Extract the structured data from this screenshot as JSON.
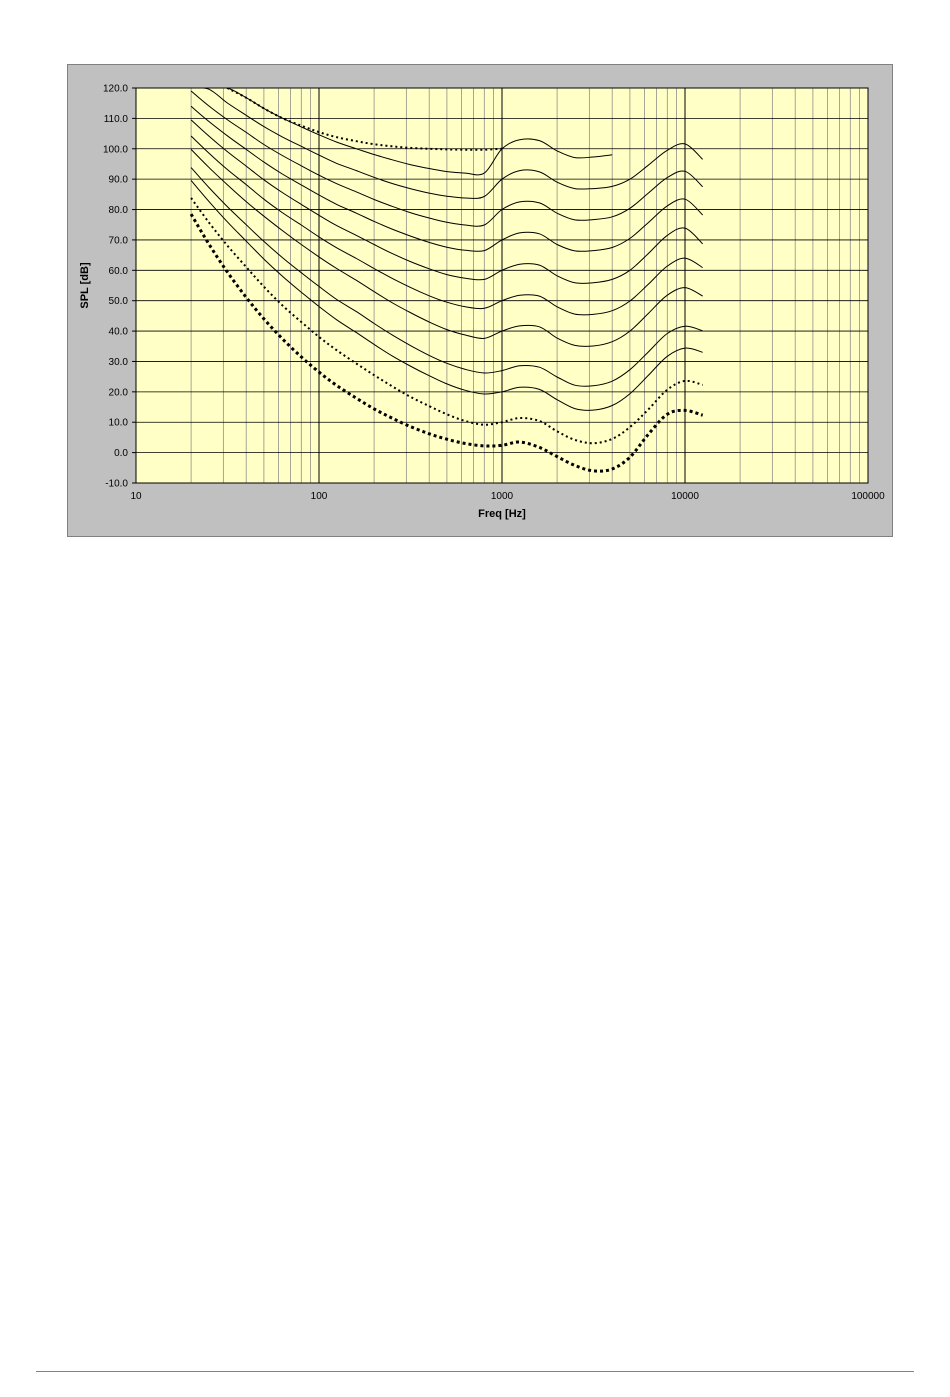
{
  "colors": {
    "panel": "#c0c0c0",
    "plot_area": "#ffffc6",
    "grid": "#808080",
    "major_grid": "#000000",
    "curves": "#000000"
  },
  "chart_data": {
    "type": "line",
    "title": "",
    "xlabel": "Freq [Hz]",
    "ylabel": "SPL [dB]",
    "xscale": "log",
    "xlim": [
      10,
      100000
    ],
    "ylim": [
      -10,
      120
    ],
    "x_ticks": [
      "10",
      "100",
      "1000",
      "10000",
      "100000"
    ],
    "y_ticks": [
      "120.0",
      "110.0",
      "100.0",
      "90.0",
      "80.0",
      "70.0",
      "60.0",
      "50.0",
      "40.0",
      "30.0",
      "20.0",
      "10.0",
      "0.0",
      "-10.0"
    ],
    "grid": true,
    "legend": "none",
    "series": [
      {
        "style": "thick-dotted",
        "x": [
          20,
          25,
          31.5,
          40,
          50,
          63,
          80,
          100,
          125,
          160,
          200,
          250,
          315,
          400,
          500,
          630,
          800,
          1000,
          1250,
          1600,
          2000,
          2500,
          3150,
          4000,
          5000,
          6300,
          8000,
          10000,
          12500
        ],
        "y": [
          78.5,
          68.7,
          59.5,
          51.1,
          44.0,
          37.5,
          31.5,
          26.5,
          22.1,
          17.9,
          14.4,
          11.4,
          8.6,
          6.2,
          4.4,
          3.0,
          2.2,
          2.4,
          3.5,
          1.7,
          -1.3,
          -4.2,
          -6.0,
          -5.4,
          -1.5,
          6.0,
          12.6,
          13.9,
          12.3
        ]
      },
      {
        "style": "dotted",
        "x": [
          20,
          25,
          31.5,
          40,
          50,
          63,
          80,
          100,
          125,
          160,
          200,
          250,
          315,
          400,
          500,
          630,
          800,
          1000,
          1250,
          1600,
          2000,
          2500,
          3150,
          4000,
          5000,
          6300,
          8000,
          10000,
          12500
        ],
        "y": [
          83.8,
          75.8,
          68.2,
          61.1,
          54.6,
          48.5,
          43.0,
          38.1,
          33.7,
          29.3,
          25.5,
          21.9,
          18.4,
          15.3,
          12.6,
          10.4,
          9.2,
          10.0,
          11.4,
          10.4,
          7.0,
          4.2,
          3.1,
          4.5,
          8.4,
          14.2,
          20.7,
          23.6,
          22.3
        ]
      },
      {
        "style": "solid",
        "x": [
          20,
          25,
          31.5,
          40,
          50,
          63,
          80,
          100,
          125,
          160,
          200,
          250,
          315,
          400,
          500,
          630,
          800,
          1000,
          1250,
          1600,
          2000,
          2500,
          3150,
          4000,
          5000,
          6300,
          8000,
          10000,
          12500
        ],
        "y": [
          89.6,
          82.7,
          76.0,
          69.6,
          63.7,
          58.1,
          52.8,
          48.1,
          43.7,
          39.5,
          35.6,
          31.9,
          28.5,
          25.3,
          22.6,
          20.5,
          19.3,
          20.0,
          21.5,
          20.8,
          17.4,
          14.5,
          14.0,
          15.5,
          19.4,
          25.4,
          31.7,
          34.4,
          33.0
        ]
      },
      {
        "style": "solid",
        "x": [
          20,
          25,
          31.5,
          40,
          50,
          63,
          80,
          100,
          125,
          160,
          200,
          250,
          315,
          400,
          500,
          630,
          800,
          1000,
          1250,
          1600,
          2000,
          2500,
          3150,
          4000,
          5000,
          6300,
          8000,
          10000,
          12500
        ],
        "y": [
          93.8,
          87.3,
          81.0,
          75.0,
          69.5,
          64.2,
          59.2,
          54.7,
          50.4,
          46.4,
          42.5,
          38.8,
          35.3,
          32.0,
          29.4,
          27.4,
          26.2,
          27.0,
          28.6,
          28.1,
          24.9,
          22.2,
          22.0,
          23.5,
          27.3,
          33.1,
          39.2,
          41.6,
          40.1
        ]
      },
      {
        "style": "solid",
        "x": [
          20,
          25,
          31.5,
          40,
          50,
          63,
          80,
          100,
          125,
          160,
          200,
          250,
          315,
          400,
          500,
          630,
          800,
          1000,
          1250,
          1600,
          2000,
          2500,
          3150,
          4000,
          5000,
          6300,
          8000,
          10000,
          12500
        ],
        "y": [
          99.8,
          93.9,
          88.2,
          82.6,
          77.8,
          73.1,
          68.5,
          64.4,
          60.6,
          56.7,
          53.0,
          49.4,
          46.1,
          43.0,
          40.5,
          38.7,
          37.6,
          40.0,
          41.7,
          41.4,
          37.7,
          35.3,
          35.1,
          36.5,
          40.0,
          45.8,
          51.8,
          54.3,
          51.5
        ]
      },
      {
        "style": "solid",
        "x": [
          20,
          25,
          31.5,
          40,
          50,
          63,
          80,
          100,
          125,
          160,
          200,
          250,
          315,
          400,
          500,
          630,
          800,
          1000,
          1250,
          1600,
          2000,
          2500,
          3150,
          4000,
          5000,
          6300,
          8000,
          10000,
          12500
        ],
        "y": [
          104.2,
          98.6,
          93.2,
          88.2,
          83.4,
          79.0,
          74.9,
          71.0,
          67.4,
          63.9,
          60.6,
          57.4,
          54.4,
          51.6,
          49.5,
          48.0,
          47.5,
          50.0,
          51.8,
          51.5,
          48.0,
          45.6,
          45.5,
          46.7,
          49.9,
          55.4,
          61.4,
          64.0,
          60.9
        ]
      },
      {
        "style": "solid",
        "x": [
          20,
          25,
          31.5,
          40,
          50,
          63,
          80,
          100,
          125,
          160,
          200,
          250,
          315,
          400,
          500,
          630,
          800,
          1000,
          1250,
          1600,
          2000,
          2500,
          3150,
          4000,
          5000,
          6300,
          8000,
          10000,
          12500
        ],
        "y": [
          109.5,
          104.2,
          99.1,
          94.3,
          89.8,
          85.6,
          81.7,
          78.1,
          74.7,
          71.5,
          68.5,
          65.6,
          62.9,
          60.5,
          58.6,
          57.4,
          57.0,
          60.0,
          62.0,
          61.7,
          58.2,
          55.9,
          55.9,
          57.0,
          60.0,
          65.5,
          71.5,
          73.9,
          68.7
        ]
      },
      {
        "style": "solid",
        "x": [
          20,
          25,
          31.5,
          40,
          50,
          63,
          80,
          100,
          125,
          160,
          200,
          250,
          315,
          400,
          500,
          630,
          800,
          1000,
          1250,
          1600,
          2000,
          2500,
          3150,
          4000,
          5000,
          6300,
          8000,
          10000,
          12500
        ],
        "y": [
          114.0,
          109.0,
          104.3,
          99.8,
          95.6,
          91.7,
          88.1,
          84.8,
          81.7,
          78.8,
          76.1,
          73.6,
          71.3,
          69.2,
          67.6,
          66.6,
          66.5,
          70.0,
          72.3,
          72.0,
          68.5,
          66.4,
          66.5,
          67.5,
          70.5,
          75.7,
          81.2,
          83.4,
          78.2
        ]
      },
      {
        "style": "solid",
        "x": [
          20,
          25,
          31.5,
          40,
          50,
          63,
          80,
          100,
          125,
          160,
          200,
          250,
          315,
          400,
          500,
          630,
          800,
          1000,
          1250,
          1600,
          2000,
          2500,
          3150,
          4000,
          5000,
          6300,
          8000,
          10000,
          12500
        ],
        "y": [
          119.0,
          114.1,
          109.6,
          105.4,
          101.4,
          97.8,
          94.4,
          91.3,
          88.5,
          85.8,
          83.3,
          81.1,
          79.0,
          77.2,
          75.8,
          74.9,
          74.9,
          80.0,
          82.5,
          82.2,
          78.8,
          76.6,
          76.7,
          77.6,
          80.4,
          85.4,
          90.5,
          92.6,
          87.5
        ]
      },
      {
        "style": "solid",
        "x": [
          20,
          25,
          31.5,
          40,
          50,
          63,
          80,
          100,
          125,
          160,
          200,
          250,
          315,
          400,
          500,
          630,
          800,
          1000,
          1250,
          1600,
          2000,
          2500,
          3150,
          4000,
          5000,
          6300,
          8000,
          10000,
          12500
        ],
        "y": [
          120,
          119.6,
          115.1,
          111.0,
          107.3,
          103.9,
          100.8,
          97.9,
          95.2,
          92.8,
          90.6,
          88.6,
          86.9,
          85.4,
          84.4,
          83.8,
          84.3,
          90.0,
          92.8,
          92.4,
          89.0,
          86.9,
          86.9,
          87.6,
          90.0,
          94.6,
          99.5,
          101.6,
          96.5
        ]
      },
      {
        "style": "solid",
        "x": [
          20,
          25,
          31.5,
          40,
          50,
          63,
          80,
          100,
          125,
          160,
          200,
          250,
          315,
          400,
          500,
          630,
          800,
          1000,
          1250,
          1600,
          2000,
          2500,
          3150,
          4000
        ],
        "y": [
          120,
          120,
          120,
          116.8,
          113.3,
          110.1,
          107.2,
          104.6,
          102.2,
          100.0,
          98.1,
          96.4,
          94.8,
          93.5,
          92.5,
          92.0,
          92.0,
          100.0,
          103.0,
          102.7,
          99.3,
          97.1,
          97.3,
          98.0
        ]
      },
      {
        "style": "dotted",
        "x": [
          31.5,
          40,
          50,
          63,
          80,
          100,
          125,
          160,
          200,
          250,
          315,
          400,
          500,
          630,
          800,
          1000
        ],
        "y": [
          120.0,
          116.8,
          113.3,
          110.1,
          107.6,
          105.5,
          103.8,
          102.5,
          101.5,
          100.8,
          100.3,
          100.0,
          99.8,
          99.7,
          99.7,
          100.0
        ]
      }
    ]
  }
}
